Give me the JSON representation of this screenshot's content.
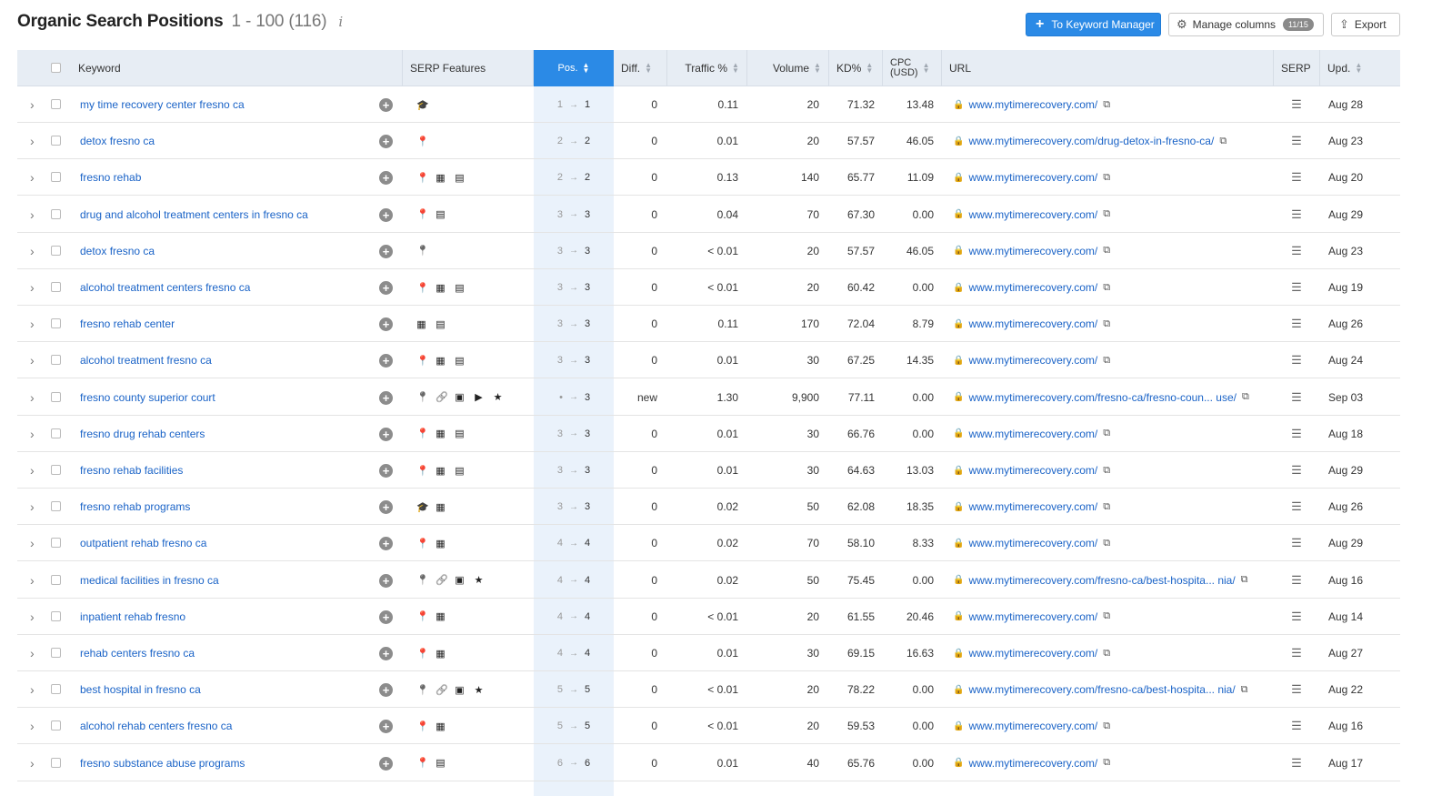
{
  "header": {
    "title": "Organic Search Positions",
    "range": "1 - 100 (116)",
    "info": "i",
    "keyword_manager_label": "To Keyword Manager",
    "manage_columns_label": "Manage columns",
    "manage_columns_badge": "11/15",
    "export_label": "Export"
  },
  "columns": {
    "keyword": "Keyword",
    "serp_features": "SERP Features",
    "pos": "Pos.",
    "diff": "Diff.",
    "traffic": "Traffic %",
    "volume": "Volume",
    "kd": "KD%",
    "cpc": "CPC",
    "cpc_unit": "(USD)",
    "url": "URL",
    "serp": "SERP",
    "upd": "Upd."
  },
  "rows": [
    {
      "keyword": "my time recovery center fresno ca",
      "features": [
        "cap"
      ],
      "prev": "1",
      "pos": "1",
      "diff": "0",
      "traffic": "0.11",
      "volume": "20",
      "kd": "71.32",
      "cpc": "13.48",
      "url": "www.mytimerecovery.com/",
      "upd": "Aug 28"
    },
    {
      "keyword": "detox fresno ca",
      "features": [
        "pin"
      ],
      "prev": "2",
      "pos": "2",
      "diff": "0",
      "traffic": "0.01",
      "volume": "20",
      "kd": "57.57",
      "cpc": "46.05",
      "url": "www.mytimerecovery.com/drug-detox-in-fresno-ca/",
      "upd": "Aug 23"
    },
    {
      "keyword": "fresno rehab",
      "features": [
        "pin",
        "ad",
        "ad2"
      ],
      "prev": "2",
      "pos": "2",
      "diff": "0",
      "traffic": "0.13",
      "volume": "140",
      "kd": "65.77",
      "cpc": "11.09",
      "url": "www.mytimerecovery.com/",
      "upd": "Aug 20"
    },
    {
      "keyword": "drug and alcohol treatment centers in fresno ca",
      "features": [
        "pin",
        "ad2"
      ],
      "prev": "3",
      "pos": "3",
      "diff": "0",
      "traffic": "0.04",
      "volume": "70",
      "kd": "67.30",
      "cpc": "0.00",
      "url": "www.mytimerecovery.com/",
      "upd": "Aug 29"
    },
    {
      "keyword": "detox fresno ca",
      "features": [
        "pin-gray"
      ],
      "prev": "3",
      "pos": "3",
      "diff": "0",
      "traffic": "< 0.01",
      "volume": "20",
      "kd": "57.57",
      "cpc": "46.05",
      "url": "www.mytimerecovery.com/",
      "upd": "Aug 23"
    },
    {
      "keyword": "alcohol treatment centers fresno ca",
      "features": [
        "pin",
        "ad",
        "ad2"
      ],
      "prev": "3",
      "pos": "3",
      "diff": "0",
      "traffic": "< 0.01",
      "volume": "20",
      "kd": "60.42",
      "cpc": "0.00",
      "url": "www.mytimerecovery.com/",
      "upd": "Aug 19"
    },
    {
      "keyword": "fresno rehab center",
      "features": [
        "ad",
        "ad2"
      ],
      "prev": "3",
      "pos": "3",
      "diff": "0",
      "traffic": "0.11",
      "volume": "170",
      "kd": "72.04",
      "cpc": "8.79",
      "url": "www.mytimerecovery.com/",
      "upd": "Aug 26"
    },
    {
      "keyword": "alcohol treatment fresno ca",
      "features": [
        "pin",
        "ad",
        "ad2"
      ],
      "prev": "3",
      "pos": "3",
      "diff": "0",
      "traffic": "0.01",
      "volume": "30",
      "kd": "67.25",
      "cpc": "14.35",
      "url": "www.mytimerecovery.com/",
      "upd": "Aug 24"
    },
    {
      "keyword": "fresno county superior court",
      "features": [
        "pin-gray",
        "link",
        "img",
        "video",
        "star"
      ],
      "prev": "•",
      "pos": "3",
      "diff": "new",
      "traffic": "1.30",
      "volume": "9,900",
      "kd": "77.11",
      "cpc": "0.00",
      "url": "www.mytimerecovery.com/fresno-ca/fresno-coun... use/",
      "upd": "Sep 03"
    },
    {
      "keyword": "fresno drug rehab centers",
      "features": [
        "pin",
        "ad",
        "ad2"
      ],
      "prev": "3",
      "pos": "3",
      "diff": "0",
      "traffic": "0.01",
      "volume": "30",
      "kd": "66.76",
      "cpc": "0.00",
      "url": "www.mytimerecovery.com/",
      "upd": "Aug 18"
    },
    {
      "keyword": "fresno rehab facilities",
      "features": [
        "pin",
        "ad",
        "ad2"
      ],
      "prev": "3",
      "pos": "3",
      "diff": "0",
      "traffic": "0.01",
      "volume": "30",
      "kd": "64.63",
      "cpc": "13.03",
      "url": "www.mytimerecovery.com/",
      "upd": "Aug 29"
    },
    {
      "keyword": "fresno rehab programs",
      "features": [
        "cap",
        "ad"
      ],
      "prev": "3",
      "pos": "3",
      "diff": "0",
      "traffic": "0.02",
      "volume": "50",
      "kd": "62.08",
      "cpc": "18.35",
      "url": "www.mytimerecovery.com/",
      "upd": "Aug 26"
    },
    {
      "keyword": "outpatient rehab fresno ca",
      "features": [
        "pin",
        "ad"
      ],
      "prev": "4",
      "pos": "4",
      "diff": "0",
      "traffic": "0.02",
      "volume": "70",
      "kd": "58.10",
      "cpc": "8.33",
      "url": "www.mytimerecovery.com/",
      "upd": "Aug 29"
    },
    {
      "keyword": "medical facilities in fresno ca",
      "features": [
        "pin-gray",
        "link",
        "img",
        "star"
      ],
      "prev": "4",
      "pos": "4",
      "diff": "0",
      "traffic": "0.02",
      "volume": "50",
      "kd": "75.45",
      "cpc": "0.00",
      "url": "www.mytimerecovery.com/fresno-ca/best-hospita... nia/",
      "upd": "Aug 16"
    },
    {
      "keyword": "inpatient rehab fresno",
      "features": [
        "pin",
        "ad"
      ],
      "prev": "4",
      "pos": "4",
      "diff": "0",
      "traffic": "< 0.01",
      "volume": "20",
      "kd": "61.55",
      "cpc": "20.46",
      "url": "www.mytimerecovery.com/",
      "upd": "Aug 14"
    },
    {
      "keyword": "rehab centers fresno ca",
      "features": [
        "pin",
        "ad"
      ],
      "prev": "4",
      "pos": "4",
      "diff": "0",
      "traffic": "0.01",
      "volume": "30",
      "kd": "69.15",
      "cpc": "16.63",
      "url": "www.mytimerecovery.com/",
      "upd": "Aug 27"
    },
    {
      "keyword": "best hospital in fresno ca",
      "features": [
        "pin-gray",
        "link",
        "img",
        "star"
      ],
      "prev": "5",
      "pos": "5",
      "diff": "0",
      "traffic": "< 0.01",
      "volume": "20",
      "kd": "78.22",
      "cpc": "0.00",
      "url": "www.mytimerecovery.com/fresno-ca/best-hospita... nia/",
      "upd": "Aug 22"
    },
    {
      "keyword": "alcohol rehab centers fresno ca",
      "features": [
        "pin",
        "ad"
      ],
      "prev": "5",
      "pos": "5",
      "diff": "0",
      "traffic": "< 0.01",
      "volume": "20",
      "kd": "59.53",
      "cpc": "0.00",
      "url": "www.mytimerecovery.com/",
      "upd": "Aug 16"
    },
    {
      "keyword": "fresno substance abuse programs",
      "features": [
        "pin",
        "ad2"
      ],
      "prev": "6",
      "pos": "6",
      "diff": "0",
      "traffic": "0.01",
      "volume": "40",
      "kd": "65.76",
      "cpc": "0.00",
      "url": "www.mytimerecovery.com/",
      "upd": "Aug 17"
    }
  ]
}
